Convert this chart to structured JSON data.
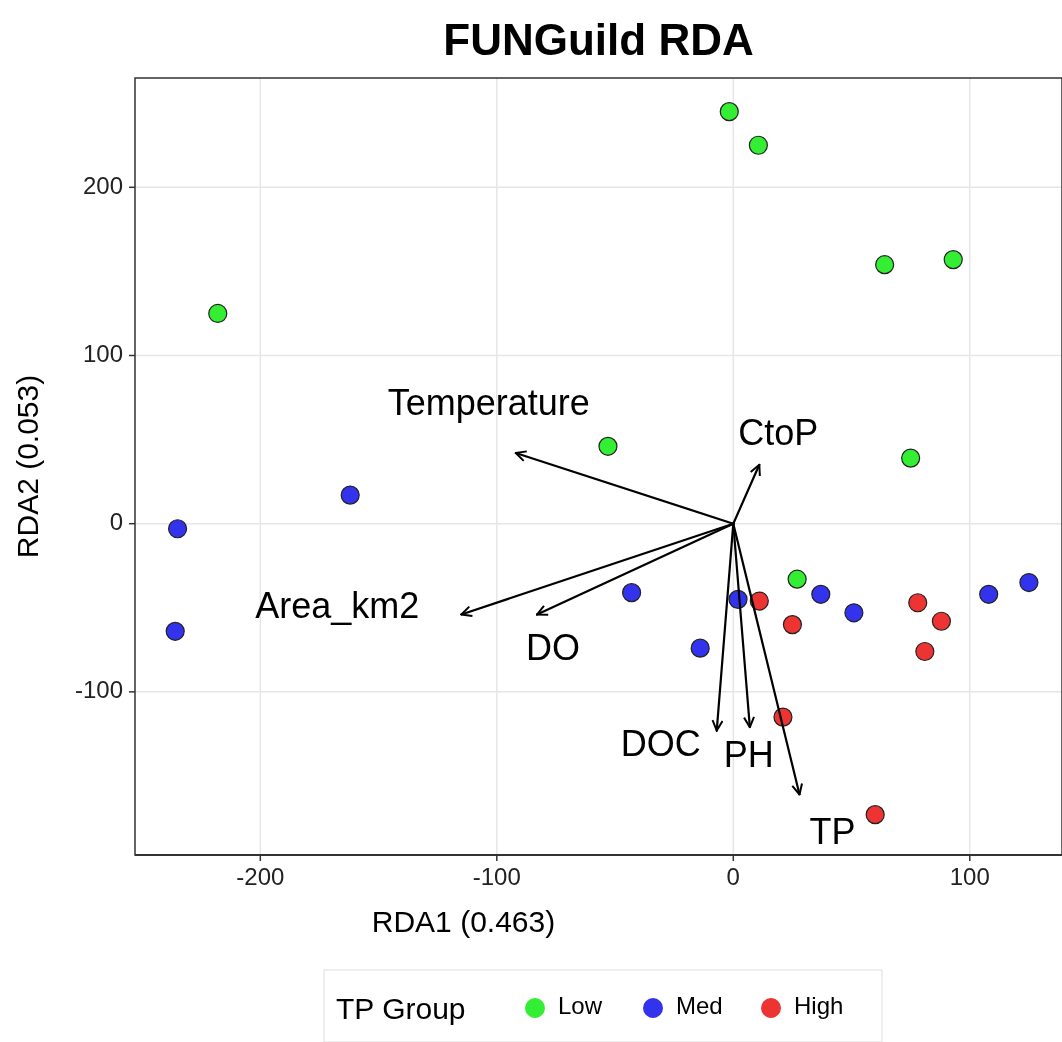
{
  "chart_data": {
    "type": "scatter",
    "title": "FUNGuild RDA",
    "xlabel": "RDA1 (0.463)",
    "ylabel": "RDA2 (0.053)",
    "legend_title": "TP Group",
    "xlim": [
      -253,
      139
    ],
    "ylim": [
      -197,
      265
    ],
    "xticks": [
      -200,
      -100,
      0,
      100
    ],
    "yticks": [
      {
        "value": -100,
        "label": "-100"
      },
      0,
      100,
      200
    ],
    "grid": true,
    "legend": "bottom",
    "marker": "circle",
    "series": [
      {
        "name": "Low",
        "color": "#33ee33",
        "x": [
          -1.7,
          10.6,
          64,
          93,
          -218,
          -53,
          75,
          27
        ],
        "values": [
          245,
          225,
          154,
          157,
          125,
          46,
          39,
          -33
        ]
      },
      {
        "name": "Med",
        "color": "#3333ee",
        "x": [
          -162,
          -235,
          -236,
          -43,
          2,
          -14,
          37,
          51,
          108,
          125
        ],
        "values": [
          17,
          -3,
          -64,
          -41,
          -45,
          -74,
          -42,
          -53,
          -42,
          -35
        ]
      },
      {
        "name": "High",
        "color": "#ee3333",
        "x": [
          11,
          25,
          78,
          88,
          81,
          21,
          60
        ],
        "values": [
          -46,
          -60,
          -47,
          -58,
          -76,
          -115,
          -173
        ]
      },
      {
        "type": "line",
        "marker": "none",
        "color": "#000000",
        "x": [
          0,
          -92
        ],
        "values": [
          0,
          42
        ]
      },
      {
        "type": "line",
        "marker": "none",
        "color": "#000000",
        "x": [
          0,
          11
        ],
        "values": [
          0,
          35
        ]
      },
      {
        "type": "line",
        "marker": "none",
        "color": "#000000",
        "x": [
          0,
          -115
        ],
        "values": [
          0,
          -54
        ]
      },
      {
        "type": "line",
        "marker": "none",
        "color": "#000000",
        "x": [
          0,
          -83
        ],
        "values": [
          0,
          -54
        ]
      },
      {
        "type": "line",
        "marker": "none",
        "color": "#000000",
        "x": [
          0,
          -7
        ],
        "values": [
          0,
          -123
        ]
      },
      {
        "type": "line",
        "marker": "none",
        "color": "#000000",
        "x": [
          0,
          7
        ],
        "values": [
          0,
          -121
        ]
      },
      {
        "type": "line",
        "marker": "none",
        "color": "#000000",
        "x": [
          0,
          28
        ],
        "values": [
          0,
          -161
        ]
      }
    ],
    "annotations": [
      "Temperature",
      "CtoP",
      "Area_km2",
      "DO",
      "DOC",
      "PH",
      "TP"
    ]
  }
}
